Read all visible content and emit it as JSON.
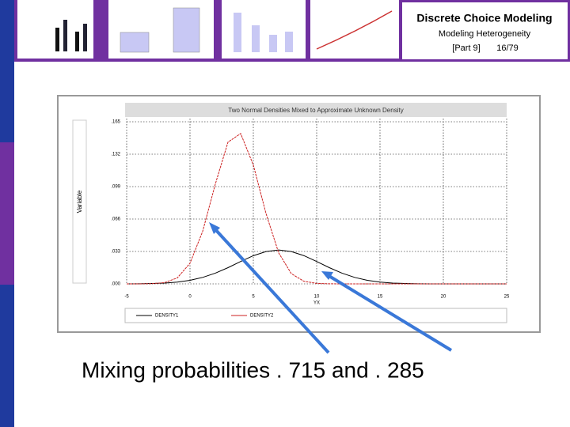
{
  "header": {
    "title": "Discrete Choice Modeling",
    "subtitle": "Modeling Heterogeneity",
    "part": "[Part 9]",
    "page": "16/79"
  },
  "caption": "Mixing probabilities . 715 and . 285",
  "chart_data": {
    "type": "line",
    "title": "Two Normal Densities Mixed to Approximate Unknown Density",
    "y_label": "Variable",
    "x_label": "YX",
    "x": [
      -5,
      -4,
      -3,
      -2,
      -1,
      0,
      1,
      2,
      3,
      4,
      5,
      6,
      7,
      8,
      9,
      10,
      11,
      12,
      13,
      14,
      15,
      16,
      17,
      18,
      19,
      20,
      21,
      22,
      23,
      24,
      25
    ],
    "series": [
      {
        "name": "DENSITY1",
        "color": "#000000",
        "values": [
          0,
          0.0001,
          0.0004,
          0.0008,
          0.0018,
          0.0036,
          0.0066,
          0.0109,
          0.0165,
          0.0228,
          0.0287,
          0.0329,
          0.0345,
          0.0329,
          0.0287,
          0.0228,
          0.0165,
          0.0109,
          0.0066,
          0.0036,
          0.0018,
          0.0008,
          0.0004,
          0.0001,
          0,
          0,
          0,
          0,
          0,
          0,
          0
        ]
      },
      {
        "name": "DENSITY2",
        "color": "#cc2222",
        "values": [
          0,
          0,
          0.0002,
          0.0013,
          0.0061,
          0.021,
          0.0535,
          0.1016,
          0.1443,
          0.153,
          0.121,
          0.0716,
          0.0316,
          0.0104,
          0.0026,
          0.0005,
          0.0001,
          0,
          0,
          0,
          0,
          0,
          0,
          0,
          0,
          0,
          0,
          0,
          0,
          0,
          0
        ]
      }
    ],
    "xlim": [
      -5,
      25
    ],
    "xticks": [
      -5,
      0,
      5,
      10,
      15,
      20,
      25
    ],
    "ylim": [
      0,
      0.165
    ],
    "yticks": [
      {
        "value": 0,
        "label": ".000"
      },
      {
        "value": 0.033,
        "label": ".033"
      },
      {
        "value": 0.066,
        "label": ".066"
      },
      {
        "value": 0.099,
        "label": ".099"
      },
      {
        "value": 0.132,
        "label": ".132"
      },
      {
        "value": 0.165,
        "label": ".165"
      }
    ],
    "grid": true
  }
}
